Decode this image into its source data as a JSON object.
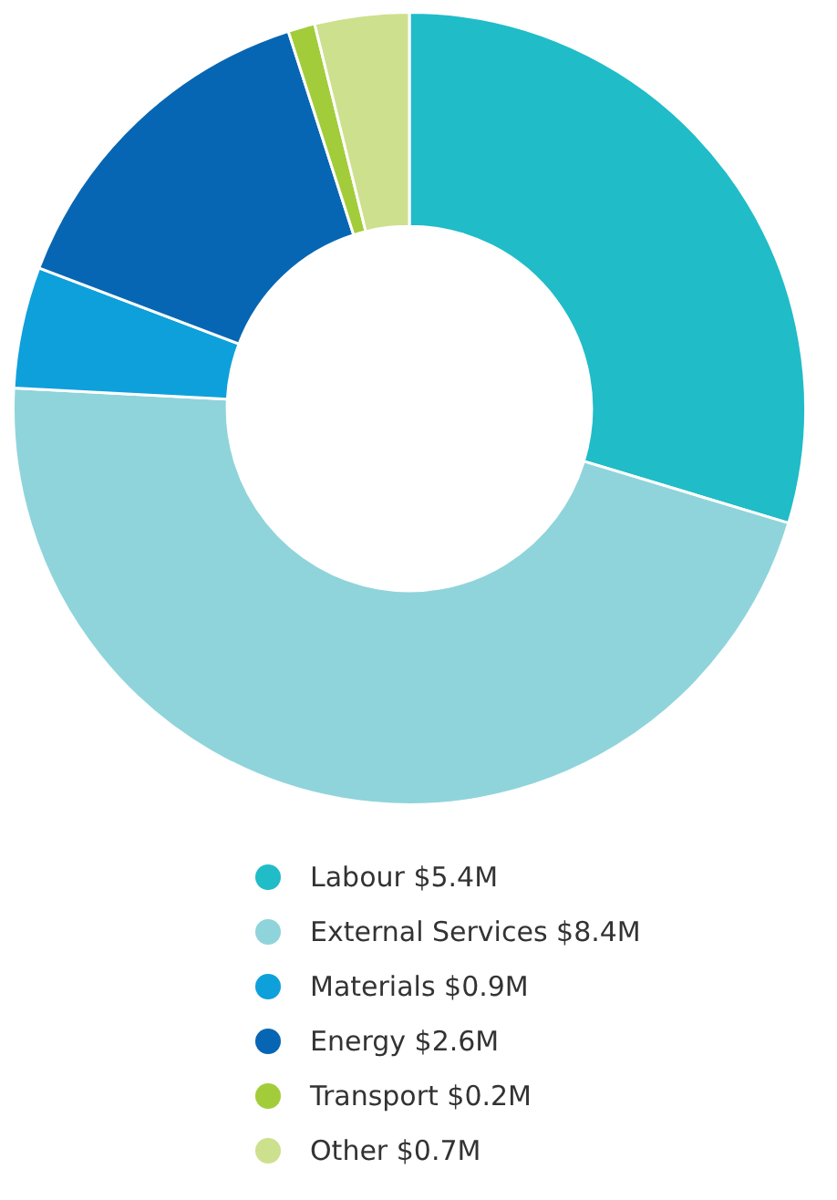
{
  "chart_data": {
    "type": "donut",
    "categories": [
      "Labour",
      "External Services",
      "Materials",
      "Energy",
      "Transport",
      "Other"
    ],
    "values": [
      5.4,
      8.4,
      0.9,
      2.6,
      0.2,
      0.7
    ],
    "value_labels": [
      "$5.4M",
      "$8.4M",
      "$0.9M",
      "$2.6M",
      "$0.2M",
      "$0.7M"
    ],
    "colors": [
      "#20bcc8",
      "#8fd4db",
      "#0ea0db",
      "#0766b3",
      "#a2cc3a",
      "#cde08e"
    ],
    "legend": "bottom"
  }
}
